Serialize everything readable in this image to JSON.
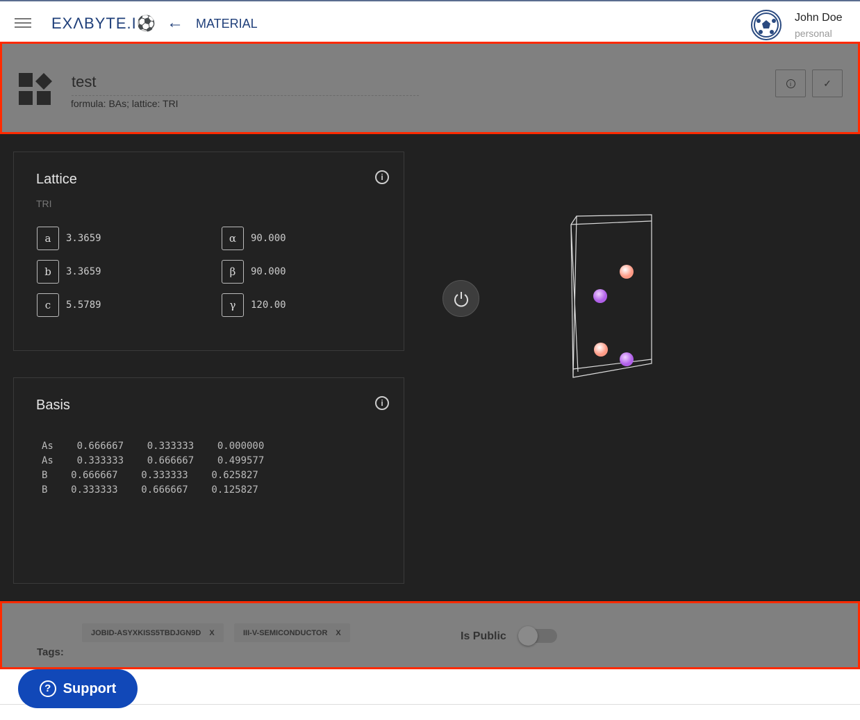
{
  "header": {
    "logo": "EXΛBYTE.I⚽",
    "back_icon": "arrow-left",
    "breadcrumb": "MATERIAL",
    "user_name": "John Doe",
    "user_account": "personal"
  },
  "material": {
    "name": "test",
    "formula": "formula: BAs; lattice: TRI",
    "info_icon": "info",
    "confirm_icon": "check"
  },
  "lattice": {
    "title": "Lattice",
    "type": "TRI",
    "params": [
      {
        "label": "a",
        "value": "3.3659"
      },
      {
        "label": "b",
        "value": "3.3659"
      },
      {
        "label": "c",
        "value": "5.5789"
      },
      {
        "label": "α",
        "value": "90.000"
      },
      {
        "label": "β",
        "value": "90.000"
      },
      {
        "label": "γ",
        "value": "120.00"
      }
    ]
  },
  "basis": {
    "title": "Basis",
    "text": "As    0.666667    0.333333    0.000000\nAs    0.333333    0.666667    0.499577\nB    0.666667    0.333333    0.625827\nB    0.333333    0.666667    0.125827"
  },
  "viewer": {
    "power_icon": "power",
    "atom_colors": {
      "As": "#c080f0",
      "B": "#ffb0a0"
    }
  },
  "footer": {
    "tags_label": "Tags:",
    "tags": [
      "JOBID-ASYXKISS5TBDJGN9D",
      "III-V-SEMICONDUCTOR"
    ],
    "tag_remove": "X",
    "is_public_label": "Is Public",
    "is_public": false,
    "support_label": "Support"
  },
  "colors": {
    "brand": "#1f3f7a",
    "support": "#1148b8",
    "highlight": "#ff2a00"
  }
}
